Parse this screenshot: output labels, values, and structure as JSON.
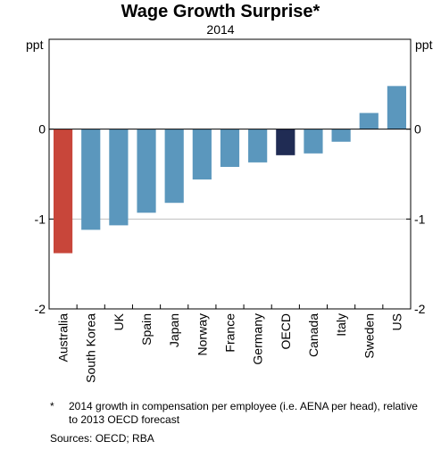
{
  "title": "Wage Growth Surprise*",
  "subtitle": "2014",
  "unit_left": "ppt",
  "unit_right": "ppt",
  "footnote_mark": "*",
  "footnote_text": "2014 growth in compensation per employee (i.e. AENA per head), relative to 2013 OECD forecast",
  "sources": "Sources:  OECD; RBA",
  "colors": {
    "default_bar": "#5b97bd",
    "australia_bar": "#c8463a",
    "oecd_bar": "#202c54",
    "gridline": "#bfbfbf",
    "axis": "#000000"
  },
  "chart_data": {
    "type": "bar",
    "title": "Wage Growth Surprise*",
    "subtitle": "2014",
    "ylabel": "ppt",
    "ylim": [
      -2,
      1
    ],
    "yticks": [
      -2,
      -1,
      0
    ],
    "ytick_labels": [
      "-2",
      "-1",
      "0"
    ],
    "grid": true,
    "categories": [
      "Australia",
      "South Korea",
      "UK",
      "Spain",
      "Japan",
      "Norway",
      "France",
      "Germany",
      "OECD",
      "Canada",
      "Italy",
      "Sweden",
      "US"
    ],
    "values": [
      -1.38,
      -1.12,
      -1.07,
      -0.93,
      -0.82,
      -0.56,
      -0.42,
      -0.37,
      -0.29,
      -0.27,
      -0.14,
      0.18,
      0.48
    ],
    "highlight": {
      "Australia": "australia_bar",
      "OECD": "oecd_bar"
    }
  }
}
